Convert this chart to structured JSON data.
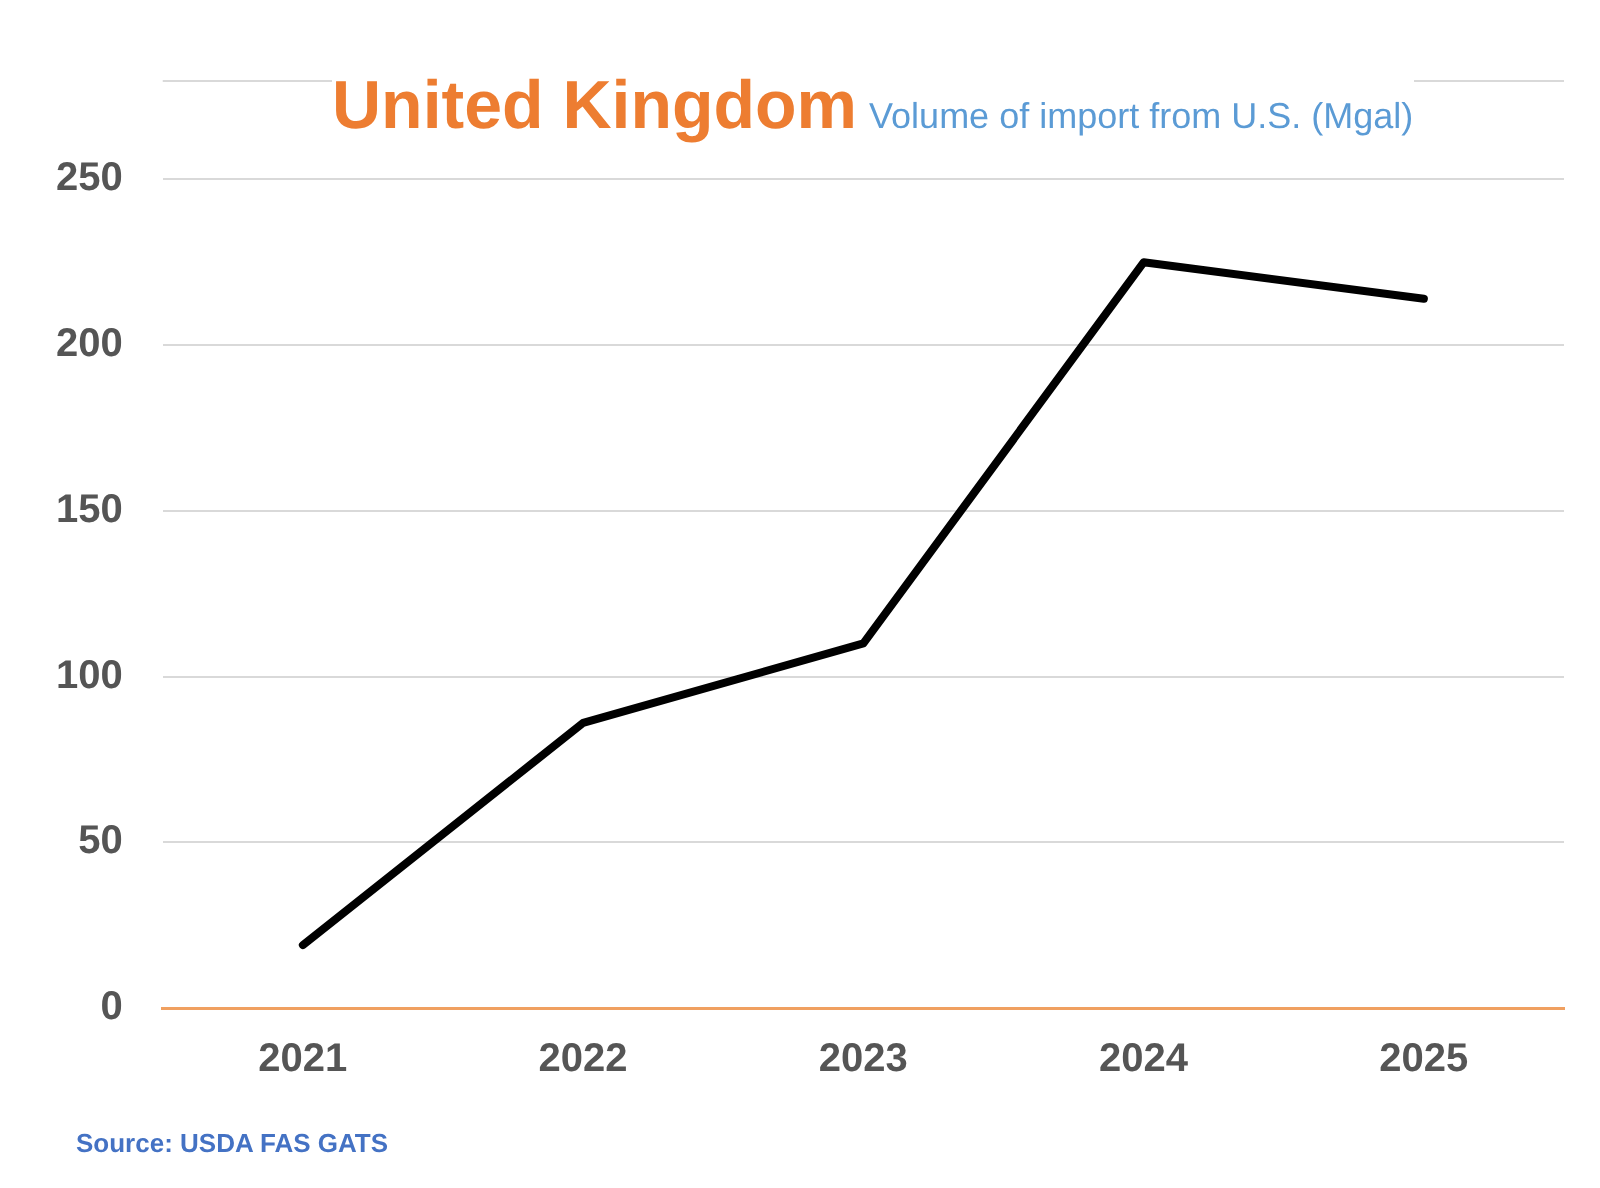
{
  "chart_data": {
    "type": "line",
    "title": "United Kingdom",
    "subtitle": "Volume of import from U.S. (Mgal)",
    "categories": [
      "2021",
      "2022",
      "2023",
      "2024",
      "2025"
    ],
    "series": [
      {
        "color": "#000000",
        "values": [
          19,
          86,
          110,
          225,
          214
        ]
      }
    ],
    "ylim": [
      0,
      280
    ],
    "yticks": [
      0,
      50,
      100,
      150,
      200,
      250
    ],
    "grid": "y",
    "legend": false,
    "marker": "none",
    "line_style": "solid",
    "annotations": [
      "Source: USDA FAS GATS"
    ]
  }
}
